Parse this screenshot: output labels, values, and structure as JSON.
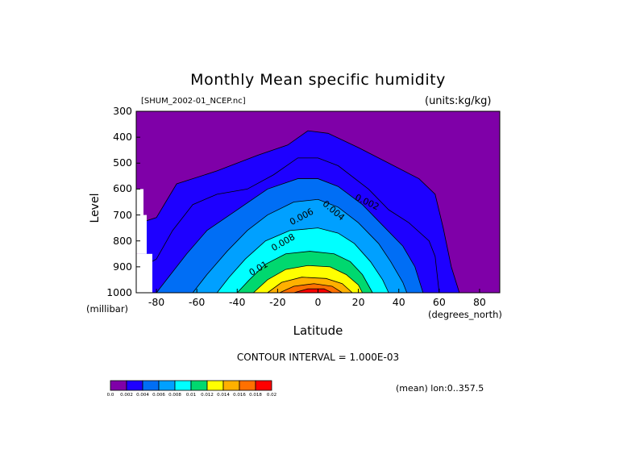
{
  "title": "Monthly Mean specific humidity",
  "file_label": "[SHUM_2002-01_NCEP.nc]",
  "units_label": "(units:kg/kg)",
  "contour_interval": "CONTOUR INTERVAL = 1.000E-03",
  "mean_label": "(mean) lon:0..357.5",
  "colors": [
    "#7f00a8",
    "#1e00ff",
    "#006ef5",
    "#00a0ff",
    "#00ffff",
    "#00d86f",
    "#ffff00",
    "#ffb000",
    "#ff7000",
    "#ff0000"
  ],
  "colorbar_labels": [
    "0.0",
    "0.002",
    "0.004",
    "0.006",
    "0.008",
    "0.01",
    "0.012",
    "0.014",
    "0.016",
    "0.018",
    "0.02"
  ],
  "chart_data": {
    "type": "heatmap",
    "title": "Monthly Mean specific humidity",
    "xlabel": "Latitude",
    "ylabel": "Level",
    "x_unit": "(degrees_north)",
    "y_unit": "(millibar)",
    "xlim": [
      -90,
      90
    ],
    "ylim": [
      1000,
      300
    ],
    "x_ticks": [
      "-80",
      "-60",
      "-40",
      "-20",
      "0",
      "20",
      "40",
      "60",
      "80"
    ],
    "y_ticks": [
      "300",
      "400",
      "500",
      "600",
      "700",
      "800",
      "900",
      "1000"
    ],
    "contour_levels": [
      0.0,
      0.001,
      0.002,
      0.003,
      0.004,
      0.005,
      0.006,
      0.007,
      0.008,
      0.009,
      0.01,
      0.011,
      0.012,
      0.013,
      0.014,
      0.015,
      0.016,
      0.017,
      0.018
    ],
    "contour_labels": [
      "0.002",
      "0.004",
      "0.006",
      "0.008",
      "0.01"
    ],
    "max_region": {
      "lat": -5,
      "level": 1000,
      "value": 0.018
    },
    "contour_boundaries": [
      {
        "level": 0.001,
        "points": [
          [
            -88,
            730
          ],
          [
            -80,
            710
          ],
          [
            -70,
            580
          ],
          [
            -50,
            530
          ],
          [
            -30,
            470
          ],
          [
            -15,
            430
          ],
          [
            -5,
            375
          ],
          [
            5,
            385
          ],
          [
            20,
            440
          ],
          [
            35,
            500
          ],
          [
            50,
            560
          ],
          [
            58,
            620
          ],
          [
            62,
            750
          ],
          [
            66,
            900
          ],
          [
            70,
            1000
          ]
        ]
      },
      {
        "level": 0.002,
        "points": [
          [
            -87,
            900
          ],
          [
            -80,
            870
          ],
          [
            -72,
            760
          ],
          [
            -62,
            660
          ],
          [
            -50,
            620
          ],
          [
            -35,
            600
          ],
          [
            -22,
            545
          ],
          [
            -10,
            480
          ],
          [
            0,
            480
          ],
          [
            10,
            510
          ],
          [
            25,
            600
          ],
          [
            35,
            680
          ],
          [
            45,
            730
          ],
          [
            55,
            800
          ],
          [
            58,
            860
          ],
          [
            60,
            1000
          ]
        ]
      },
      {
        "level": 0.004,
        "points": [
          [
            -80,
            1000
          ],
          [
            -75,
            950
          ],
          [
            -65,
            850
          ],
          [
            -55,
            760
          ],
          [
            -40,
            680
          ],
          [
            -25,
            600
          ],
          [
            -10,
            560
          ],
          [
            0,
            560
          ],
          [
            10,
            590
          ],
          [
            22,
            660
          ],
          [
            32,
            740
          ],
          [
            42,
            820
          ],
          [
            48,
            900
          ],
          [
            52,
            1000
          ]
        ]
      },
      {
        "level": 0.006,
        "points": [
          [
            -62,
            1000
          ],
          [
            -55,
            930
          ],
          [
            -45,
            840
          ],
          [
            -35,
            760
          ],
          [
            -25,
            700
          ],
          [
            -12,
            650
          ],
          [
            0,
            640
          ],
          [
            10,
            670
          ],
          [
            20,
            730
          ],
          [
            30,
            810
          ],
          [
            36,
            880
          ],
          [
            42,
            960
          ],
          [
            44,
            1000
          ]
        ]
      },
      {
        "level": 0.008,
        "points": [
          [
            -50,
            1000
          ],
          [
            -44,
            940
          ],
          [
            -36,
            870
          ],
          [
            -26,
            800
          ],
          [
            -14,
            760
          ],
          [
            0,
            750
          ],
          [
            10,
            770
          ],
          [
            18,
            810
          ],
          [
            26,
            880
          ],
          [
            32,
            950
          ],
          [
            35,
            1000
          ]
        ]
      },
      {
        "level": 0.01,
        "points": [
          [
            -40,
            1000
          ],
          [
            -34,
            950
          ],
          [
            -26,
            890
          ],
          [
            -16,
            850
          ],
          [
            -4,
            840
          ],
          [
            8,
            850
          ],
          [
            16,
            880
          ],
          [
            22,
            930
          ],
          [
            27,
            1000
          ]
        ]
      },
      {
        "level": 0.012,
        "points": [
          [
            -32,
            1000
          ],
          [
            -25,
            950
          ],
          [
            -16,
            910
          ],
          [
            -5,
            895
          ],
          [
            6,
            900
          ],
          [
            14,
            930
          ],
          [
            20,
            970
          ],
          [
            22,
            1000
          ]
        ]
      },
      {
        "level": 0.014,
        "points": [
          [
            -25,
            1000
          ],
          [
            -18,
            960
          ],
          [
            -8,
            940
          ],
          [
            4,
            945
          ],
          [
            12,
            965
          ],
          [
            17,
            1000
          ]
        ]
      },
      {
        "level": 0.016,
        "points": [
          [
            -19,
            1000
          ],
          [
            -12,
            975
          ],
          [
            -2,
            965
          ],
          [
            7,
            975
          ],
          [
            12,
            1000
          ]
        ]
      },
      {
        "level": 0.018,
        "points": [
          [
            -12,
            1000
          ],
          [
            -5,
            985
          ],
          [
            3,
            985
          ],
          [
            7,
            1000
          ]
        ]
      }
    ]
  }
}
